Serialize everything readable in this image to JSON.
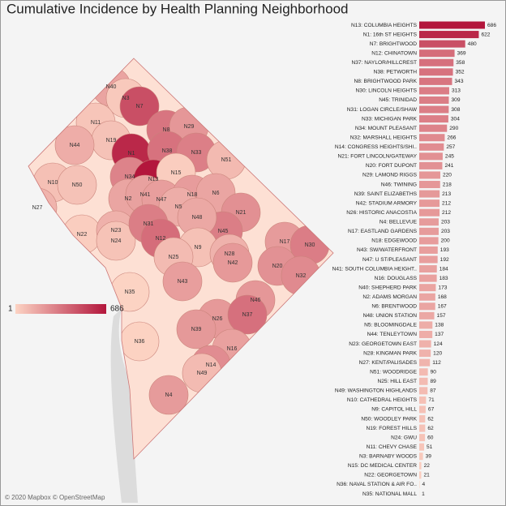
{
  "chart_data": {
    "type": "bar",
    "orientation": "horizontal",
    "title": "Cumulative Incidence by Health Planning Neighborhood",
    "categories": [
      "N13: COLUMBIA HEIGHTS",
      "N1: 16th ST HEIGHTS",
      "N7: BRIGHTWOOD",
      "N12: CHINATOWN",
      "N37: NAYLOR/HILLCREST",
      "N38: PETWORTH",
      "N8: BRIGHTWOOD PARK",
      "N30: LINCOLN HEIGHTS",
      "N45: TRINIDAD",
      "N31: LOGAN CIRCLE/SHAW",
      "N33: MICHIGAN PARK",
      "N34: MOUNT PLEASANT",
      "N32: MARSHALL HEIGHTS",
      "N14: CONGRESS HEIGHTS/SHI..",
      "N21: FORT LINCOLN/GATEWAY",
      "N20: FORT DUPONT",
      "N29: LAMOND RIGGS",
      "N46: TWINING",
      "N39: SAINT ELIZABETHS",
      "N42: STADIUM ARMORY",
      "N26: HISTORIC ANACOSTIA",
      "N4: BELLEVUE",
      "N17: EASTLAND GARDENS",
      "N18: EDGEWOOD",
      "N43: SW/WATERFRONT",
      "N47: U ST/PLEASANT",
      "N41: SOUTH COLUMBIA HEIGHT..",
      "N16: DOUGLASS",
      "N40: SHEPHERD PARK",
      "N2: ADAMS MORGAN",
      "N6: BRENTWOOD",
      "N48: UNION STATION",
      "N5: BLOOMINGDALE",
      "N44: TENLEYTOWN",
      "N23: GEORGETOWN EAST",
      "N28: KINGMAN PARK",
      "N27: KENT/PALISADES",
      "N51: WOODRIDGE",
      "N25: HILL EAST",
      "N49: WASHINGTON HIGHLANDS",
      "N10: CATHEDRAL HEIGHTS",
      "N9: CAPITOL HILL",
      "N50: WOODLEY PARK",
      "N19: FOREST HILLS",
      "N24: GWU",
      "N11: CHEVY CHASE",
      "N3: BARNABY WOODS",
      "N15: DC MEDICAL CENTER",
      "N22: GEORGETOWN",
      "N36: NAVAL STATION & AIR FO..",
      "N35: NATIONAL MALL"
    ],
    "values": [
      686,
      622,
      480,
      369,
      358,
      352,
      343,
      313,
      309,
      308,
      304,
      290,
      266,
      257,
      245,
      241,
      220,
      218,
      213,
      212,
      212,
      203,
      203,
      200,
      193,
      192,
      184,
      183,
      173,
      168,
      167,
      157,
      138,
      137,
      124,
      120,
      112,
      90,
      89,
      87,
      71,
      67,
      62,
      62,
      60,
      51,
      39,
      22,
      21,
      4,
      1
    ],
    "color_scale": {
      "min": 1,
      "max": 686,
      "colors": [
        "#fcd3c3",
        "#b3163c"
      ]
    },
    "map_labels": [
      "N40",
      "N3",
      "N7",
      "N11",
      "N19",
      "N8",
      "N29",
      "N44",
      "N1",
      "N38",
      "N33",
      "N51",
      "N34",
      "N13",
      "N15",
      "N10",
      "N50",
      "N2",
      "N41",
      "N47",
      "N18",
      "N6",
      "N27",
      "N5",
      "N21",
      "N22",
      "N23",
      "N24",
      "N31",
      "N12",
      "N45",
      "N17",
      "N30",
      "N48",
      "N9",
      "N28",
      "N42",
      "N20",
      "N25",
      "N43",
      "N32",
      "N35",
      "N46",
      "N26",
      "N37",
      "N39",
      "N16",
      "N36",
      "N14",
      "N49",
      "N4"
    ],
    "attribution": "© 2020 Mapbox © OpenStreetMap"
  }
}
